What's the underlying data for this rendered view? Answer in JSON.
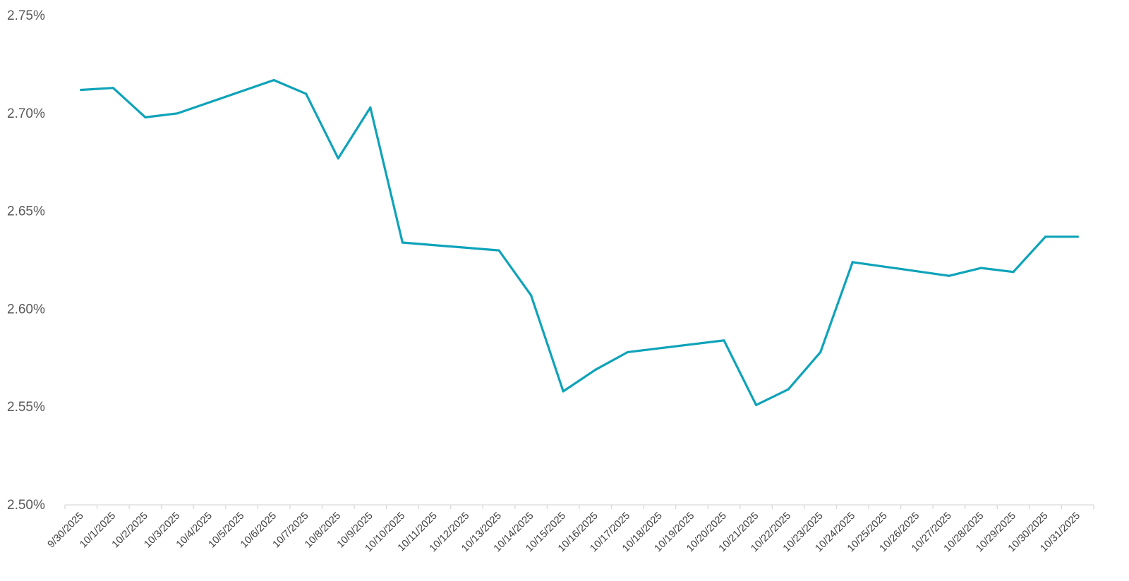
{
  "chart_data": {
    "type": "line",
    "title": "",
    "xlabel": "",
    "ylabel": "",
    "ylim": [
      0.025,
      0.0275
    ],
    "yticks": [
      {
        "value": 0.025,
        "label": "2.50%"
      },
      {
        "value": 0.0255,
        "label": "2.55%"
      },
      {
        "value": 0.026,
        "label": "2.60%"
      },
      {
        "value": 0.0265,
        "label": "2.65%"
      },
      {
        "value": 0.027,
        "label": "2.70%"
      },
      {
        "value": 0.0275,
        "label": "2.75%"
      }
    ],
    "categories": [
      "9/30/2025",
      "10/1/2025",
      "10/2/2025",
      "10/3/2025",
      "10/4/2025",
      "10/5/2025",
      "10/6/2025",
      "10/7/2025",
      "10/8/2025",
      "10/9/2025",
      "10/10/2025",
      "10/11/2025",
      "10/12/2025",
      "10/13/2025",
      "10/14/2025",
      "10/15/2025",
      "10/16/2025",
      "10/17/2025",
      "10/18/2025",
      "10/19/2025",
      "10/20/2025",
      "10/21/2025",
      "10/22/2025",
      "10/23/2025",
      "10/24/2025",
      "10/25/2025",
      "10/26/2025",
      "10/27/2025",
      "10/28/2025",
      "10/29/2025",
      "10/30/2025",
      "10/31/2025"
    ],
    "grid": false,
    "legend": "none",
    "series": [
      {
        "color": "#0ea3b9",
        "points": [
          {
            "x": "9/30/2025",
            "y": 0.02712
          },
          {
            "x": "10/1/2025",
            "y": 0.02713
          },
          {
            "x": "10/2/2025",
            "y": 0.02698
          },
          {
            "x": "10/3/2025",
            "y": 0.027
          },
          {
            "x": "10/6/2025",
            "y": 0.02717
          },
          {
            "x": "10/7/2025",
            "y": 0.0271
          },
          {
            "x": "10/8/2025",
            "y": 0.02677
          },
          {
            "x": "10/9/2025",
            "y": 0.02703
          },
          {
            "x": "10/10/2025",
            "y": 0.02634
          },
          {
            "x": "10/13/2025",
            "y": 0.0263
          },
          {
            "x": "10/14/2025",
            "y": 0.02607
          },
          {
            "x": "10/15/2025",
            "y": 0.02558
          },
          {
            "x": "10/16/2025",
            "y": 0.02569
          },
          {
            "x": "10/17/2025",
            "y": 0.02578
          },
          {
            "x": "10/20/2025",
            "y": 0.02584
          },
          {
            "x": "10/21/2025",
            "y": 0.02551
          },
          {
            "x": "10/22/2025",
            "y": 0.02559
          },
          {
            "x": "10/23/2025",
            "y": 0.02578
          },
          {
            "x": "10/24/2025",
            "y": 0.02624
          },
          {
            "x": "10/27/2025",
            "y": 0.02617
          },
          {
            "x": "10/28/2025",
            "y": 0.02621
          },
          {
            "x": "10/29/2025",
            "y": 0.02619
          },
          {
            "x": "10/30/2025",
            "y": 0.02637
          },
          {
            "x": "10/31/2025",
            "y": 0.02637
          }
        ]
      }
    ]
  }
}
